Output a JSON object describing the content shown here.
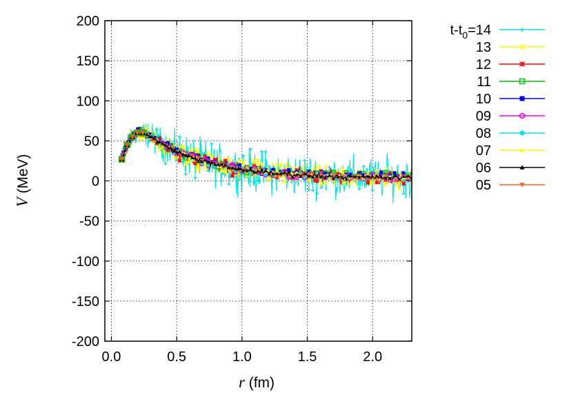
{
  "chart_data": {
    "type": "scatter",
    "title": "",
    "xlabel_symbol": "r",
    "xlabel_unit": " (fm)",
    "ylabel_symbol": "V",
    "ylabel_unit": " (MeV)",
    "xlim": [
      -0.05,
      2.3
    ],
    "ylim": [
      -200,
      200
    ],
    "xticks": [
      0.0,
      0.5,
      1.0,
      1.5,
      2.0
    ],
    "xtick_labels": [
      "0.0",
      "0.5",
      "1.0",
      "1.5",
      "2.0"
    ],
    "yticks": [
      -200,
      -150,
      -100,
      -50,
      0,
      50,
      100,
      150,
      200
    ],
    "ytick_labels": [
      "-200",
      "-150",
      "-100",
      "-50",
      "0",
      "50",
      "100",
      "150",
      "200"
    ],
    "grid": true,
    "legend_position": "outside-right",
    "legend_title_prefix": "t-t",
    "legend_title_subscript": "0",
    "legend_title_suffix": "=14",
    "series": [
      {
        "label": "14",
        "color": "#00e5e5",
        "marker": "plus",
        "scatter": 18
      },
      {
        "label": "13",
        "color": "#ffff00",
        "marker": "x",
        "scatter": 10
      },
      {
        "label": "12",
        "color": "#ff0000",
        "marker": "star",
        "scatter": 6
      },
      {
        "label": "11",
        "color": "#00c000",
        "marker": "open-square",
        "scatter": 4
      },
      {
        "label": "10",
        "color": "#0000ff",
        "marker": "filled-square",
        "scatter": 3
      },
      {
        "label": "09",
        "color": "#ff00ff",
        "marker": "open-circle",
        "scatter": 3
      },
      {
        "label": "08",
        "color": "#00e5e5",
        "marker": "filled-circle",
        "scatter": 3
      },
      {
        "label": "07",
        "color": "#ffff00",
        "marker": "filled-triangle",
        "scatter": 3
      },
      {
        "label": "06",
        "color": "#000000",
        "marker": "filled-triangle",
        "scatter": 2
      },
      {
        "label": "05",
        "color": "#ff6020",
        "marker": "inverted-triangle",
        "scatter": 3
      }
    ],
    "mean_curve": {
      "r": [
        0.08,
        0.12,
        0.16,
        0.2,
        0.25,
        0.3,
        0.4,
        0.5,
        0.6,
        0.8,
        1.0,
        1.2,
        1.5,
        1.8,
        2.0,
        2.3
      ],
      "V": [
        27,
        45,
        55,
        60,
        60,
        55,
        45,
        36,
        30,
        20,
        14,
        10,
        7,
        5,
        4.5,
        4
      ]
    }
  }
}
